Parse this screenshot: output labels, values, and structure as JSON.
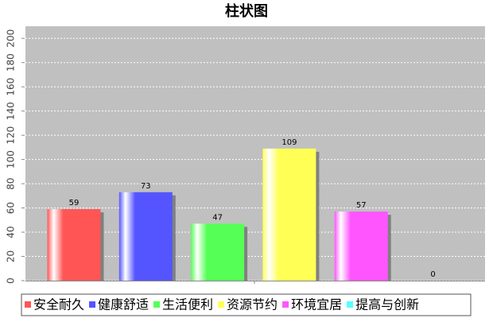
{
  "chart_data": {
    "type": "bar",
    "title": "柱状图",
    "series": [
      {
        "name": "安全耐久",
        "color": "#ff5555",
        "values": [
          59
        ]
      },
      {
        "name": "健康舒适",
        "color": "#5555ff",
        "values": [
          73
        ]
      },
      {
        "name": "生活便利",
        "color": "#55ff55",
        "values": [
          47
        ]
      },
      {
        "name": "资源节约",
        "color": "#ffff55",
        "values": [
          109
        ]
      },
      {
        "name": "环境宜居",
        "color": "#ff55ff",
        "values": [
          57
        ]
      },
      {
        "name": "提高与创新",
        "color": "#55ffff",
        "values": [
          0
        ]
      }
    ],
    "ylim": [
      0,
      210
    ],
    "yticks": [
      0,
      20,
      40,
      60,
      80,
      100,
      120,
      140,
      160,
      180,
      200
    ],
    "grid": true
  }
}
